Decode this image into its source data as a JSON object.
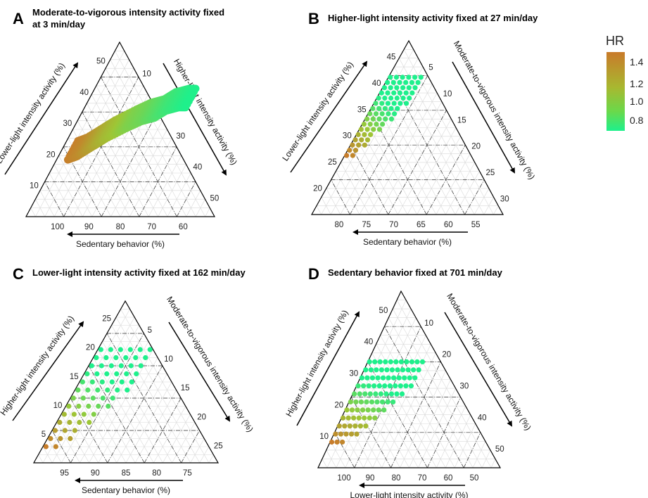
{
  "legend": {
    "title": "HR",
    "ticks": [
      "1.4",
      "1.2",
      "1.0",
      "0.8"
    ],
    "colors": {
      "high": "#c97a2a",
      "mid": "#9ec636",
      "low": "#1ef08c"
    }
  },
  "chart_data": [
    {
      "type": "scatter",
      "letter": "A",
      "title_line1": "Moderate-to-vigorous intensity activity fixed",
      "title_line2": "at 3 min/day",
      "left_axis_label": "Lower-light intensity activity (%)",
      "right_axis_label": "Higher-light intensity activity (%)",
      "bottom_axis_label": "Sedentary behavior (%)",
      "left_ticks": [
        "10",
        "20",
        "30",
        "40",
        "50"
      ],
      "right_ticks": [
        "10",
        "20",
        "30",
        "40",
        "50"
      ],
      "bottom_ticks": [
        "100",
        "90",
        "80",
        "70",
        "60"
      ],
      "hr_range": [
        0.75,
        1.4
      ],
      "point_style": "dense",
      "clusters": [
        {
          "left": 19,
          "right": 3,
          "hr": 1.38
        },
        {
          "left": 20,
          "right": 5,
          "hr": 1.33
        },
        {
          "left": 23,
          "right": 8,
          "hr": 1.2
        },
        {
          "left": 25,
          "right": 10,
          "hr": 1.12
        },
        {
          "left": 28,
          "right": 14,
          "hr": 1.0
        },
        {
          "left": 30,
          "right": 17,
          "hr": 0.95
        },
        {
          "left": 31,
          "right": 20,
          "hr": 0.88
        },
        {
          "left": 33,
          "right": 22,
          "hr": 0.83
        },
        {
          "left": 34,
          "right": 25,
          "hr": 0.78
        },
        {
          "left": 34,
          "right": 27,
          "hr": 0.75
        }
      ]
    },
    {
      "type": "scatter",
      "letter": "B",
      "title_line1": "Higher-light intensity activity fixed at 27 min/day",
      "title_line2": "",
      "left_axis_label": "Lower-light intensity activity (%)",
      "right_axis_label": "Moderate-to-vigorous  intensity activity (%)",
      "bottom_axis_label": "Sedentary behavior (%)",
      "left_ticks": [
        "20",
        "25",
        "30",
        "35",
        "40",
        "45"
      ],
      "right_ticks": [
        "5",
        "10",
        "15",
        "20",
        "25",
        "30"
      ],
      "bottom_ticks": [
        "80",
        "75",
        "70",
        "65",
        "60",
        "55"
      ],
      "hr_range": [
        0.75,
        1.4
      ],
      "point_style": "rows",
      "row_start": 17,
      "row_end": 40,
      "row_step": 1.5,
      "right_max": 8
    },
    {
      "type": "scatter",
      "letter": "C",
      "title_line1": "Lower-light intensity activity fixed at 162 min/day",
      "title_line2": "",
      "left_axis_label": "Higher-light intensity activity (%)",
      "right_axis_label": "Moderate-to-vigorous  intensity activity (%)",
      "bottom_axis_label": "Sedentary behavior (%)",
      "left_ticks": [
        "5",
        "10",
        "15",
        "20",
        "25"
      ],
      "right_ticks": [
        "5",
        "10",
        "15",
        "20",
        "25"
      ],
      "bottom_ticks": [
        "95",
        "90",
        "85",
        "80",
        "75"
      ],
      "hr_range": [
        0.75,
        1.4
      ],
      "point_style": "rows",
      "row_start": 3,
      "row_end": 22,
      "row_step": 1.5,
      "right_max": 9
    },
    {
      "type": "scatter",
      "letter": "D",
      "title_line1": "Sedentary behavior fixed at 701 min/day",
      "title_line2": "",
      "left_axis_label": "Higher-light intensity activity (%)",
      "right_axis_label": "Moderate-to-vigorous  intensity activity (%)",
      "bottom_axis_label": "Lower-light intensity activity (%)",
      "left_ticks": [
        "10",
        "20",
        "30",
        "40",
        "50"
      ],
      "right_ticks": [
        "10",
        "20",
        "30",
        "40",
        "50"
      ],
      "bottom_ticks": [
        "100",
        "90",
        "80",
        "70",
        "60",
        "50"
      ],
      "hr_range": [
        0.75,
        1.4
      ],
      "point_style": "rows",
      "row_start": 8,
      "row_end": 34,
      "row_step": 2.5,
      "right_max": 16
    }
  ]
}
